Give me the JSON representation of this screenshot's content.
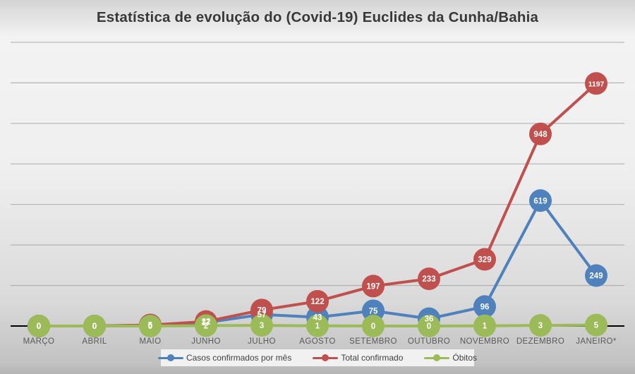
{
  "title": "Estatística de evolução do (Covid-19)  Euclides da Cunha/Bahia",
  "chart_data": {
    "type": "line",
    "title": "Estatística de evolução do (Covid-19)  Euclides da Cunha/Bahia",
    "categories": [
      "MARÇO",
      "ABRIL",
      "MAIO",
      "JUNHO",
      "JULHO",
      "AGOSTO",
      "SETEMBRO",
      "OUTUBRO",
      "NOVEMBRO",
      "DEZEMBRO",
      "JANEIRO*"
    ],
    "series": [
      {
        "name": "Casos confirmados por mês",
        "color": "#4F81BD",
        "values": [
          0,
          0,
          5,
          17,
          57,
          43,
          75,
          36,
          96,
          619,
          249
        ]
      },
      {
        "name": "Total confirmado",
        "color": "#C0504D",
        "values": [
          0,
          0,
          5,
          22,
          79,
          122,
          197,
          233,
          329,
          948,
          1197
        ]
      },
      {
        "name": "Óbitos",
        "color": "#9BBB59",
        "values": [
          0,
          0,
          0,
          2,
          3,
          1,
          0,
          0,
          1,
          3,
          5
        ]
      }
    ],
    "xlabel": "",
    "ylabel": "",
    "ylim": [
      0,
      1400
    ],
    "grid": "on",
    "grid_interval": 200,
    "gridline_color": "#a9a9a9",
    "axis_line_color": "#000000",
    "data_labels": "on",
    "data_label_color": "#ffffff",
    "x_tick_color": "#595959",
    "legend_position": "bottom"
  }
}
